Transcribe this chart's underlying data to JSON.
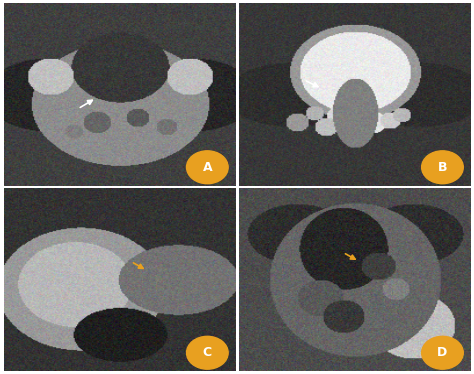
{
  "figure_width": 4.74,
  "figure_height": 3.74,
  "dpi": 100,
  "background_color": "#ffffff",
  "gap_color": "#ffffff",
  "panels": [
    "A",
    "B",
    "C",
    "D"
  ],
  "panel_label_color": "#ffffff",
  "panel_label_bg": "#E8A020",
  "panel_bg_colors": [
    "#4a4a4a",
    "#3a3a3a",
    "#2a2a2a",
    "#555555"
  ],
  "white_arrow_panels": [
    "A",
    "B"
  ],
  "orange_arrow_panels": [
    "C",
    "D"
  ],
  "arrow_color_white": "#ffffff",
  "arrow_color_orange": "#E8A020",
  "hgap": 0.008,
  "vgap": 0.008
}
